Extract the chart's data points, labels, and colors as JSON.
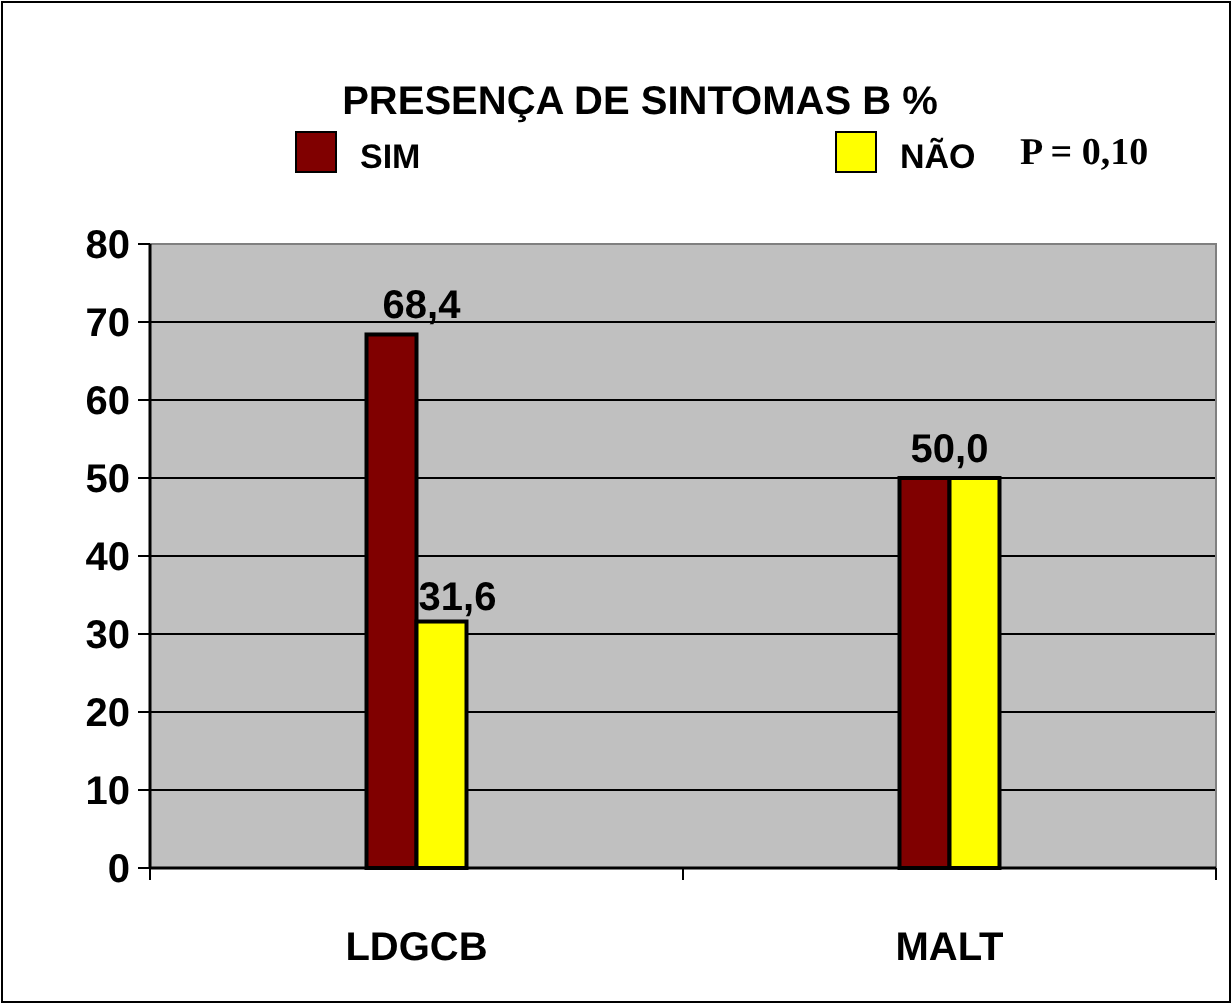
{
  "chart_data": {
    "type": "bar",
    "title": "PRESENÇA DE SINTOMAS B %",
    "categories": [
      "LDGCB",
      "MALT"
    ],
    "series": [
      {
        "name": "SIM",
        "color": "#800000",
        "values": [
          68.4,
          50.0
        ],
        "value_labels": [
          "68,4",
          "50,0"
        ]
      },
      {
        "name": "NÃO",
        "color": "#ffff00",
        "values": [
          31.6,
          50.0
        ],
        "value_labels": [
          "31,6",
          null
        ]
      }
    ],
    "ylim": [
      0,
      80
    ],
    "yticks": [
      0,
      10,
      20,
      30,
      40,
      50,
      60,
      70,
      80
    ],
    "grid": "y",
    "legend": "top",
    "annotations": [
      "P = 0,10"
    ]
  }
}
